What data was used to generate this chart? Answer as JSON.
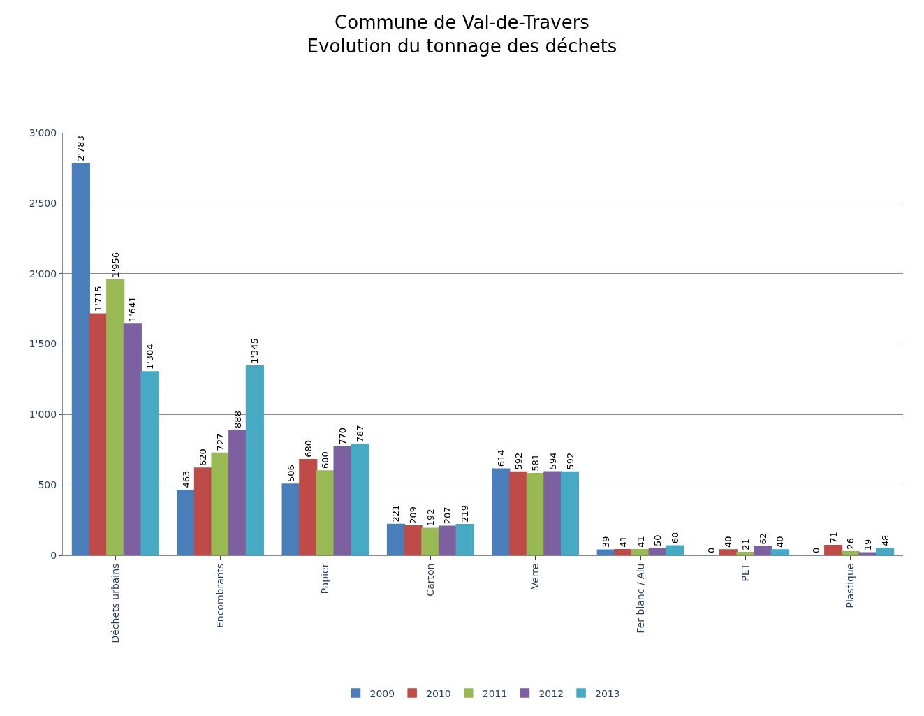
{
  "chart_data": {
    "type": "bar",
    "title": "Commune de Val-de-Travers\nEvolution du tonnage des déchets",
    "categories": [
      "Déchets urbains",
      "Encombrants",
      "Papier",
      "Carton",
      "Verre",
      "Fer blanc / Alu",
      "PET",
      "Plastique"
    ],
    "series": [
      {
        "name": "2009",
        "color": "#4a7ebb",
        "values": [
          2783,
          463,
          506,
          221,
          614,
          39,
          0,
          0
        ],
        "value_labels": [
          "2'783",
          "463",
          "506",
          "221",
          "614",
          "39",
          "0",
          "0"
        ]
      },
      {
        "name": "2010",
        "color": "#be4b48",
        "values": [
          1715,
          620,
          680,
          209,
          592,
          41,
          40,
          71
        ],
        "value_labels": [
          "1'715",
          "620",
          "680",
          "209",
          "592",
          "41",
          "40",
          "71"
        ]
      },
      {
        "name": "2011",
        "color": "#98b954",
        "values": [
          1956,
          727,
          600,
          192,
          581,
          41,
          21,
          26
        ],
        "value_labels": [
          "1'956",
          "727",
          "600",
          "192",
          "581",
          "41",
          "21",
          "26"
        ]
      },
      {
        "name": "2012",
        "color": "#7d60a0",
        "values": [
          1641,
          888,
          770,
          207,
          594,
          50,
          62,
          19
        ],
        "value_labels": [
          "1'641",
          "888",
          "770",
          "207",
          "594",
          "50",
          "62",
          "19"
        ]
      },
      {
        "name": "2013",
        "color": "#46aac5",
        "values": [
          1304,
          1345,
          787,
          219,
          592,
          68,
          40,
          48
        ],
        "value_labels": [
          "1'304",
          "1'345",
          "787",
          "219",
          "592",
          "68",
          "40",
          "48"
        ]
      }
    ],
    "ylim": [
      0,
      3000
    ],
    "yticks": [
      0,
      {
        "value": 500,
        "label": "500"
      },
      {
        "value": 1000,
        "label": "1'000"
      },
      {
        "value": 1500,
        "label": "1'500"
      },
      {
        "value": 2000,
        "label": "2'000"
      },
      {
        "value": 2500,
        "label": "2'500"
      },
      {
        "value": 3000,
        "label": "3'000"
      }
    ],
    "grid": "y",
    "legend": "bottom"
  }
}
